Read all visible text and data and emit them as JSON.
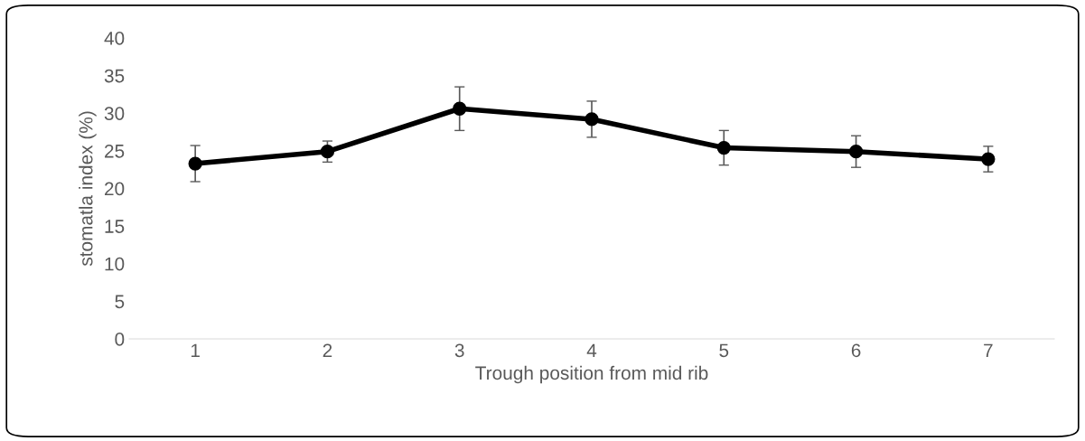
{
  "chart_data": {
    "type": "line",
    "xlabel": "Trough position from mid rib",
    "ylabel": "stomatla index (%)",
    "categories": [
      "1",
      "2",
      "3",
      "4",
      "5",
      "6",
      "7"
    ],
    "series": [
      {
        "color": "#000000",
        "values": [
          23.3,
          24.9,
          30.6,
          29.2,
          25.4,
          24.9,
          23.9
        ],
        "errors": [
          2.4,
          1.4,
          2.9,
          2.4,
          2.3,
          2.1,
          1.7
        ]
      }
    ],
    "ylim": [
      0,
      40
    ],
    "yticks": [
      0,
      5,
      10,
      15,
      20,
      25,
      30,
      35,
      40
    ],
    "grid": false,
    "legend": false,
    "marker": "circle",
    "line_style": "solid"
  }
}
